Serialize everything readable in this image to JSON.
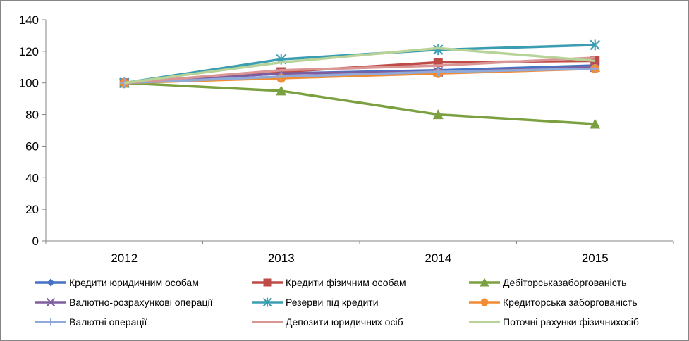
{
  "chart_data": {
    "type": "line",
    "title": "",
    "xlabel": "",
    "ylabel": "",
    "categories": [
      "2012",
      "2013",
      "2014",
      "2015"
    ],
    "ylim": [
      0,
      140
    ],
    "yticks": [
      "0",
      "20",
      "40",
      "60",
      "80",
      "100",
      "120",
      "140"
    ],
    "grid": false,
    "legend_position": "bottom",
    "series": [
      {
        "name": "Кредити юридичним особам",
        "values": [
          100,
          106,
          108,
          111
        ],
        "color": "#4472C4",
        "marker": "diamond"
      },
      {
        "name": "Кредити фізичним особам",
        "values": [
          100,
          107,
          113,
          114
        ],
        "color": "#BE4B48",
        "marker": "square"
      },
      {
        "name": "Дебіторськазаборгованість",
        "values": [
          100,
          95,
          80,
          74
        ],
        "color": "#7AA03F",
        "marker": "triangle"
      },
      {
        "name": "Валютно-розрахункові операції",
        "values": [
          100,
          106,
          107,
          110
        ],
        "color": "#7E5E9E",
        "marker": "x"
      },
      {
        "name": "Резерви під кредити",
        "values": [
          100,
          115,
          121,
          124
        ],
        "color": "#3B9DB2",
        "marker": "star"
      },
      {
        "name": "Кредиторська заборгованість",
        "values": [
          100,
          103,
          106,
          109
        ],
        "color": "#F28C34",
        "marker": "circle"
      },
      {
        "name": "Валютні операції",
        "values": [
          100,
          104,
          107,
          109
        ],
        "color": "#8FA9D8",
        "marker": "plus"
      },
      {
        "name": "Депозити юридичних осіб",
        "values": [
          100,
          108,
          111,
          116
        ],
        "color": "#D99694",
        "marker": "none"
      },
      {
        "name": "Поточні рахунки фізичнихосіб",
        "values": [
          100,
          113,
          122,
          114
        ],
        "color": "#B8D398",
        "marker": "none"
      }
    ]
  }
}
